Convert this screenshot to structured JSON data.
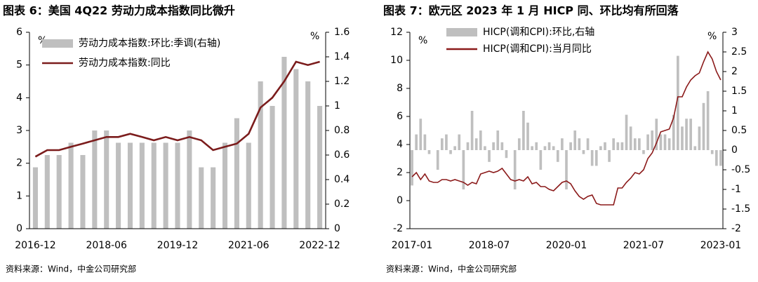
{
  "chart_data": [
    {
      "type": "combo",
      "title": "图表 6：美国 4Q22 劳动力成本指数同比微升",
      "categories": [
        "2016-12",
        null,
        null,
        null,
        null,
        null,
        "2018-06",
        null,
        null,
        null,
        null,
        null,
        "2019-12",
        null,
        null,
        null,
        null,
        null,
        "2021-06",
        null,
        null,
        null,
        null,
        null,
        "2022-12"
      ],
      "series": [
        {
          "name": "劳动力成本指数:环比:季调(右轴)",
          "type": "bar",
          "axis": "y2",
          "color": "#bfbfbf",
          "values": [
            0.5,
            0.6,
            0.6,
            0.7,
            0.6,
            0.8,
            0.8,
            0.7,
            0.7,
            0.7,
            0.7,
            0.7,
            0.7,
            0.8,
            0.5,
            0.5,
            0.7,
            0.9,
            0.7,
            1.2,
            1.0,
            1.4,
            1.3,
            1.2,
            1.0
          ]
        },
        {
          "name": "劳动力成本指数:同比",
          "type": "line",
          "color": "#7b1c1c",
          "values": [
            2.2,
            2.4,
            2.4,
            2.5,
            2.6,
            2.7,
            2.8,
            2.8,
            2.9,
            2.8,
            2.7,
            2.8,
            2.7,
            2.8,
            2.7,
            2.4,
            2.5,
            2.6,
            2.9,
            3.7,
            4.0,
            4.5,
            5.1,
            5.0,
            5.1
          ]
        }
      ],
      "ylabel": "%",
      "y2label": "%",
      "ylim": [
        0,
        6
      ],
      "yticks": [
        0,
        1,
        2,
        3,
        4,
        5,
        6
      ],
      "y2lim": [
        0,
        1.6
      ],
      "y2ticks": [
        0,
        0.2,
        0.4,
        0.6,
        0.8,
        1,
        1.2,
        1.4,
        1.6
      ],
      "source": "资料来源：Wind，中金公司研究部"
    },
    {
      "type": "combo",
      "title": "图表 7：欧元区 2023 年 1 月 HICP 同、环比均有所回落",
      "categories": [
        "2017-01",
        null,
        null,
        null,
        null,
        null,
        null,
        null,
        null,
        null,
        null,
        null,
        null,
        null,
        null,
        null,
        null,
        null,
        "2018-07",
        null,
        null,
        null,
        null,
        null,
        null,
        null,
        null,
        null,
        null,
        null,
        null,
        null,
        null,
        null,
        null,
        null,
        "2020-01",
        null,
        null,
        null,
        null,
        null,
        null,
        null,
        null,
        null,
        null,
        null,
        null,
        null,
        null,
        null,
        null,
        null,
        "2021-07",
        null,
        null,
        null,
        null,
        null,
        null,
        null,
        null,
        null,
        null,
        null,
        null,
        null,
        null,
        null,
        null,
        null,
        "2023-01"
      ],
      "series": [
        {
          "name": "HICP(调和CPI):环比,右轴",
          "type": "bar",
          "axis": "y2",
          "color": "#bfbfbf",
          "values": [
            -0.9,
            0.4,
            0.8,
            0.4,
            -0.1,
            0.0,
            -0.5,
            0.3,
            0.4,
            -0.1,
            0.1,
            0.4,
            -1.0,
            0.2,
            1.0,
            0.3,
            0.5,
            0.1,
            -0.3,
            0.2,
            0.5,
            0.2,
            -0.2,
            0.0,
            -1.0,
            0.3,
            1.0,
            0.7,
            0.1,
            0.2,
            -0.5,
            0.1,
            0.2,
            0.1,
            -0.3,
            0.3,
            -1.0,
            0.2,
            0.5,
            0.3,
            -0.1,
            0.3,
            -0.4,
            -0.4,
            0.1,
            0.2,
            -0.3,
            0.3,
            0.2,
            0.2,
            0.9,
            0.6,
            0.3,
            0.3,
            -0.1,
            0.4,
            0.5,
            0.8,
            0.4,
            0.4,
            0.3,
            0.9,
            2.4,
            0.6,
            0.8,
            0.8,
            0.1,
            0.6,
            1.2,
            1.5,
            -0.1,
            -0.4,
            -0.4
          ]
        },
        {
          "name": "HICP(调和CPI):当月同比",
          "type": "line",
          "color": "#8b1a1a",
          "values": [
            1.7,
            2.0,
            1.5,
            1.9,
            1.4,
            1.3,
            1.3,
            1.5,
            1.5,
            1.4,
            1.5,
            1.4,
            1.3,
            1.1,
            1.3,
            1.2,
            1.9,
            2.0,
            2.1,
            2.0,
            2.1,
            2.3,
            1.9,
            1.5,
            1.4,
            1.5,
            1.4,
            1.7,
            1.2,
            1.3,
            1.0,
            1.0,
            0.8,
            0.7,
            1.0,
            1.3,
            1.4,
            1.2,
            0.7,
            0.3,
            0.1,
            0.3,
            0.4,
            -0.2,
            -0.3,
            -0.3,
            -0.3,
            -0.3,
            0.9,
            0.9,
            1.3,
            1.6,
            2.0,
            1.9,
            2.2,
            3.0,
            3.4,
            4.1,
            4.9,
            5.0,
            5.1,
            5.9,
            7.4,
            7.4,
            8.1,
            8.6,
            8.9,
            9.1,
            9.9,
            10.6,
            10.1,
            9.2,
            8.6
          ]
        }
      ],
      "ylabel": "%",
      "y2label": "%",
      "ylim": [
        -2,
        12
      ],
      "yticks": [
        -2,
        0,
        2,
        4,
        6,
        8,
        10,
        12
      ],
      "y2lim": [
        -2,
        3
      ],
      "y2ticks": [
        -2,
        -1.5,
        -1,
        -0.5,
        0,
        0.5,
        1,
        1.5,
        2,
        2.5,
        3
      ],
      "source": "资料来源：Wind，中金公司研究部"
    }
  ]
}
